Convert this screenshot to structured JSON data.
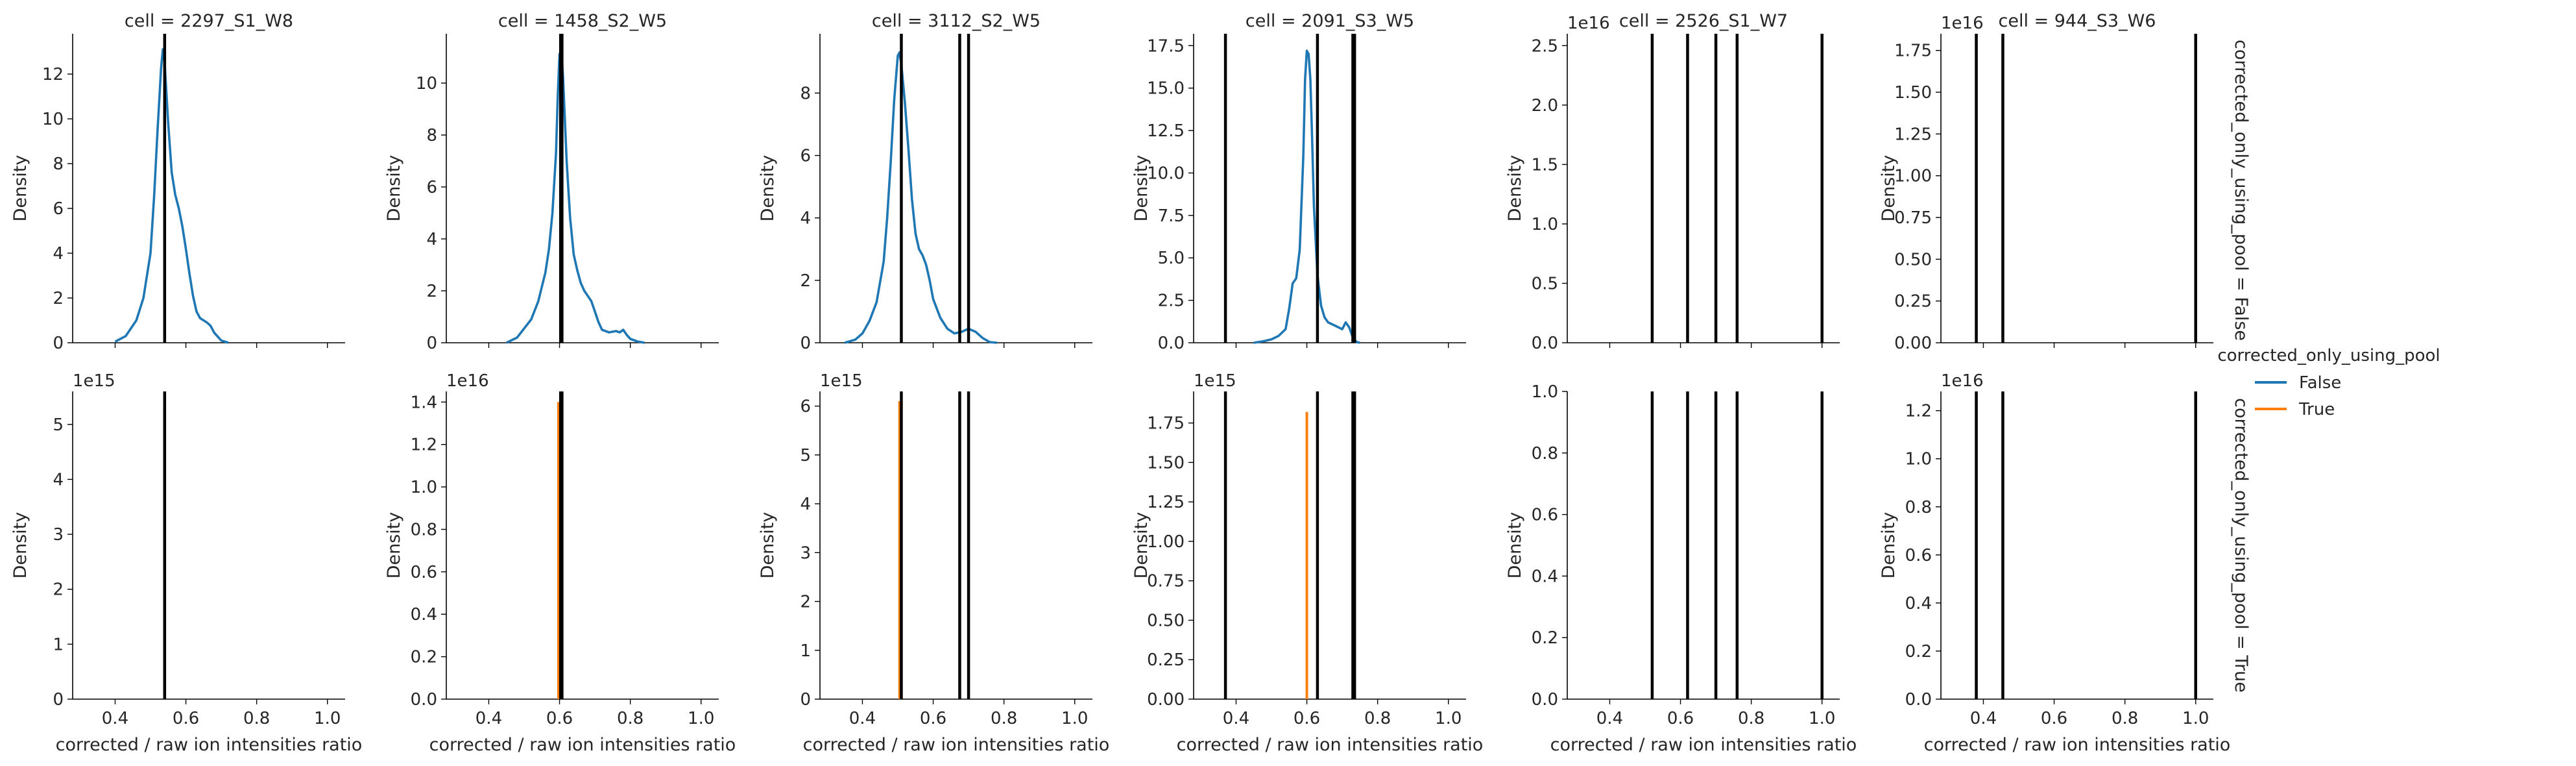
{
  "figure": {
    "legend": {
      "title": "corrected_only_using_pool",
      "entries": [
        {
          "label": "False",
          "color": "#1f77b4"
        },
        {
          "label": "True",
          "color": "#ff7f0e"
        }
      ]
    },
    "row_labels": [
      "corrected_only_using_pool = False",
      "corrected_only_using_pool = True"
    ]
  },
  "chart_data": {
    "type": "facet-kde",
    "xlabel": "corrected / raw ion intensities ratio",
    "ylabel": "Density",
    "xlim": [
      0.28,
      1.05
    ],
    "x_ticks": [
      "0.4",
      "0.6",
      "0.8",
      "1.0"
    ],
    "x_tick_values": [
      0.4,
      0.6,
      0.8,
      1.0
    ],
    "hue_colors": {
      "False": "#1f77b4",
      "True": "#ff7f0e"
    },
    "vline_color": "#000000",
    "panels": [
      {
        "title": "cell = 2297_S1_W8",
        "row": 0,
        "col": 0,
        "hue": "False",
        "ylim": [
          0,
          13.8
        ],
        "y_ticks": [
          "0",
          "2",
          "4",
          "6",
          "8",
          "10",
          "12"
        ],
        "y_tick_values": [
          0,
          2,
          4,
          6,
          8,
          10,
          12
        ],
        "offset_text": "",
        "vlines": [
          0.54
        ],
        "curve": [
          [
            0.4,
            0.05
          ],
          [
            0.43,
            0.3
          ],
          [
            0.46,
            1.0
          ],
          [
            0.48,
            2.0
          ],
          [
            0.5,
            4.0
          ],
          [
            0.51,
            6.5
          ],
          [
            0.52,
            9.5
          ],
          [
            0.53,
            12.3
          ],
          [
            0.535,
            13.1
          ],
          [
            0.54,
            12.5
          ],
          [
            0.55,
            9.8
          ],
          [
            0.56,
            7.6
          ],
          [
            0.57,
            6.6
          ],
          [
            0.58,
            6.0
          ],
          [
            0.59,
            5.2
          ],
          [
            0.6,
            4.2
          ],
          [
            0.61,
            3.1
          ],
          [
            0.62,
            2.1
          ],
          [
            0.63,
            1.4
          ],
          [
            0.64,
            1.1
          ],
          [
            0.65,
            1.0
          ],
          [
            0.66,
            0.9
          ],
          [
            0.67,
            0.75
          ],
          [
            0.68,
            0.45
          ],
          [
            0.7,
            0.1
          ],
          [
            0.72,
            0.0
          ]
        ]
      },
      {
        "title": "cell = 1458_S2_W5",
        "row": 0,
        "col": 1,
        "hue": "False",
        "ylim": [
          0,
          11.9
        ],
        "y_ticks": [
          "0",
          "2",
          "4",
          "6",
          "8",
          "10"
        ],
        "y_tick_values": [
          0,
          2,
          4,
          6,
          8,
          10
        ],
        "offset_text": "",
        "vlines": [
          0.603,
          0.607
        ],
        "curve": [
          [
            0.45,
            0.0
          ],
          [
            0.48,
            0.2
          ],
          [
            0.52,
            0.9
          ],
          [
            0.54,
            1.6
          ],
          [
            0.56,
            2.7
          ],
          [
            0.57,
            3.6
          ],
          [
            0.58,
            5.0
          ],
          [
            0.59,
            7.3
          ],
          [
            0.595,
            9.5
          ],
          [
            0.6,
            11.1
          ],
          [
            0.605,
            11.3
          ],
          [
            0.61,
            10.2
          ],
          [
            0.62,
            7.0
          ],
          [
            0.63,
            4.8
          ],
          [
            0.64,
            3.4
          ],
          [
            0.65,
            2.8
          ],
          [
            0.66,
            2.3
          ],
          [
            0.67,
            2.0
          ],
          [
            0.68,
            1.8
          ],
          [
            0.69,
            1.6
          ],
          [
            0.7,
            1.2
          ],
          [
            0.71,
            0.8
          ],
          [
            0.72,
            0.5
          ],
          [
            0.74,
            0.4
          ],
          [
            0.76,
            0.45
          ],
          [
            0.77,
            0.4
          ],
          [
            0.78,
            0.5
          ],
          [
            0.79,
            0.3
          ],
          [
            0.8,
            0.15
          ],
          [
            0.82,
            0.05
          ],
          [
            0.84,
            0.0
          ]
        ]
      },
      {
        "title": "cell = 3112_S2_W5",
        "row": 0,
        "col": 2,
        "hue": "False",
        "ylim": [
          0,
          9.9
        ],
        "y_ticks": [
          "0",
          "2",
          "4",
          "6",
          "8"
        ],
        "y_tick_values": [
          0,
          2,
          4,
          6,
          8
        ],
        "offset_text": "",
        "vlines": [
          0.51,
          0.675,
          0.7
        ],
        "curve": [
          [
            0.35,
            0.0
          ],
          [
            0.38,
            0.1
          ],
          [
            0.4,
            0.3
          ],
          [
            0.42,
            0.7
          ],
          [
            0.44,
            1.3
          ],
          [
            0.46,
            2.6
          ],
          [
            0.47,
            4.0
          ],
          [
            0.48,
            5.8
          ],
          [
            0.49,
            7.8
          ],
          [
            0.5,
            9.2
          ],
          [
            0.505,
            9.3
          ],
          [
            0.51,
            8.9
          ],
          [
            0.52,
            7.7
          ],
          [
            0.53,
            6.2
          ],
          [
            0.54,
            4.6
          ],
          [
            0.55,
            3.5
          ],
          [
            0.56,
            3.0
          ],
          [
            0.57,
            2.8
          ],
          [
            0.58,
            2.5
          ],
          [
            0.59,
            2.0
          ],
          [
            0.6,
            1.4
          ],
          [
            0.62,
            0.8
          ],
          [
            0.64,
            0.45
          ],
          [
            0.66,
            0.3
          ],
          [
            0.68,
            0.35
          ],
          [
            0.7,
            0.45
          ],
          [
            0.72,
            0.35
          ],
          [
            0.74,
            0.15
          ],
          [
            0.76,
            0.02
          ],
          [
            0.78,
            0.0
          ]
        ]
      },
      {
        "title": "cell = 2091_S3_W5",
        "row": 0,
        "col": 3,
        "hue": "False",
        "ylim": [
          0,
          18.2
        ],
        "y_ticks": [
          "0.0",
          "2.5",
          "5.0",
          "7.5",
          "10.0",
          "12.5",
          "15.0",
          "17.5"
        ],
        "y_tick_values": [
          0,
          2.5,
          5,
          7.5,
          10,
          12.5,
          15,
          17.5
        ],
        "offset_text": "",
        "vlines": [
          0.37,
          0.63,
          0.73,
          0.735
        ],
        "curve": [
          [
            0.45,
            0.0
          ],
          [
            0.48,
            0.1
          ],
          [
            0.5,
            0.2
          ],
          [
            0.52,
            0.4
          ],
          [
            0.54,
            0.8
          ],
          [
            0.55,
            2.0
          ],
          [
            0.56,
            3.5
          ],
          [
            0.57,
            3.8
          ],
          [
            0.58,
            5.5
          ],
          [
            0.59,
            11.0
          ],
          [
            0.595,
            15.5
          ],
          [
            0.6,
            17.2
          ],
          [
            0.605,
            17.0
          ],
          [
            0.61,
            15.5
          ],
          [
            0.615,
            12.0
          ],
          [
            0.62,
            8.0
          ],
          [
            0.63,
            4.0
          ],
          [
            0.64,
            2.2
          ],
          [
            0.65,
            1.5
          ],
          [
            0.66,
            1.2
          ],
          [
            0.68,
            1.0
          ],
          [
            0.7,
            0.8
          ],
          [
            0.71,
            1.2
          ],
          [
            0.72,
            0.9
          ],
          [
            0.73,
            0.3
          ],
          [
            0.74,
            0.05
          ],
          [
            0.75,
            0.0
          ]
        ]
      },
      {
        "title": "cell = 2526_S1_W7",
        "row": 0,
        "col": 4,
        "hue": "False",
        "ylim": [
          0,
          2.6
        ],
        "y_ticks": [
          "0.0",
          "0.5",
          "1.0",
          "1.5",
          "2.0",
          "2.5"
        ],
        "y_tick_values": [
          0,
          0.5,
          1.0,
          1.5,
          2.0,
          2.5
        ],
        "offset_text": "1e16",
        "vlines": [
          0.52,
          0.62,
          0.7,
          0.76,
          1.0
        ],
        "curve": []
      },
      {
        "title": "cell = 944_S3_W6",
        "row": 0,
        "col": 5,
        "hue": "False",
        "ylim": [
          0,
          1.85
        ],
        "y_ticks": [
          "0.00",
          "0.25",
          "0.50",
          "0.75",
          "1.00",
          "1.25",
          "1.50",
          "1.75"
        ],
        "y_tick_values": [
          0,
          0.25,
          0.5,
          0.75,
          1.0,
          1.25,
          1.5,
          1.75
        ],
        "offset_text": "1e16",
        "vlines": [
          0.38,
          0.455,
          1.0
        ],
        "curve": []
      },
      {
        "title": "",
        "row": 1,
        "col": 0,
        "hue": "True",
        "ylim": [
          0,
          5.6
        ],
        "y_ticks": [
          "0",
          "1",
          "2",
          "3",
          "4",
          "5"
        ],
        "y_tick_values": [
          0,
          1,
          2,
          3,
          4,
          5
        ],
        "offset_text": "1e15",
        "vlines": [
          0.54
        ],
        "spike": {
          "x": 0.54,
          "height": 5.4
        }
      },
      {
        "title": "",
        "row": 1,
        "col": 1,
        "hue": "True",
        "ylim": [
          0,
          1.45
        ],
        "y_ticks": [
          "0.0",
          "0.2",
          "0.4",
          "0.6",
          "0.8",
          "1.0",
          "1.2",
          "1.4"
        ],
        "y_tick_values": [
          0,
          0.2,
          0.4,
          0.6,
          0.8,
          1.0,
          1.2,
          1.4
        ],
        "offset_text": "1e16",
        "vlines": [
          0.603,
          0.607
        ],
        "spike": {
          "x": 0.597,
          "height": 1.4
        }
      },
      {
        "title": "",
        "row": 1,
        "col": 2,
        "hue": "True",
        "ylim": [
          0,
          6.3
        ],
        "y_ticks": [
          "0",
          "1",
          "2",
          "3",
          "4",
          "5",
          "6"
        ],
        "y_tick_values": [
          0,
          1,
          2,
          3,
          4,
          5,
          6
        ],
        "offset_text": "1e15",
        "vlines": [
          0.51,
          0.675,
          0.7
        ],
        "spike": {
          "x": 0.505,
          "height": 6.1
        }
      },
      {
        "title": "",
        "row": 1,
        "col": 3,
        "hue": "True",
        "ylim": [
          0,
          1.95
        ],
        "y_ticks": [
          "0.00",
          "0.25",
          "0.50",
          "0.75",
          "1.00",
          "1.25",
          "1.50",
          "1.75"
        ],
        "y_tick_values": [
          0,
          0.25,
          0.5,
          0.75,
          1.0,
          1.25,
          1.5,
          1.75
        ],
        "offset_text": "1e15",
        "vlines": [
          0.37,
          0.63,
          0.73,
          0.735
        ],
        "spike": {
          "x": 0.6,
          "height": 1.82
        }
      },
      {
        "title": "",
        "row": 1,
        "col": 4,
        "hue": "True",
        "ylim": [
          0,
          1.0
        ],
        "y_ticks": [
          "0.0",
          "0.2",
          "0.4",
          "0.6",
          "0.8",
          "1.0"
        ],
        "y_tick_values": [
          0,
          0.2,
          0.4,
          0.6,
          0.8,
          1.0
        ],
        "offset_text": "",
        "vlines": [
          0.52,
          0.62,
          0.7,
          0.76,
          1.0
        ]
      },
      {
        "title": "",
        "row": 1,
        "col": 5,
        "hue": "True",
        "ylim": [
          0,
          1.28
        ],
        "y_ticks": [
          "0.0",
          "0.2",
          "0.4",
          "0.6",
          "0.8",
          "1.0",
          "1.2"
        ],
        "y_tick_values": [
          0,
          0.2,
          0.4,
          0.6,
          0.8,
          1.0,
          1.2
        ],
        "offset_text": "1e16",
        "vlines": [
          0.38,
          0.455,
          1.0
        ]
      }
    ]
  }
}
